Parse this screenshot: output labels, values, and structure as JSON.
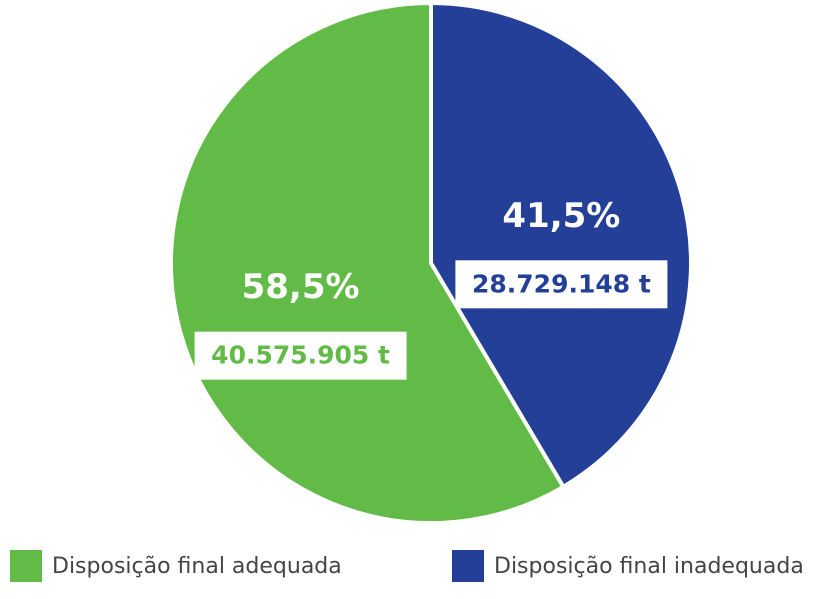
{
  "chart_data": {
    "type": "pie",
    "categories": [
      "Disposição final adequada",
      "Disposição final inadequada"
    ],
    "values": [
      58.5,
      41.5
    ],
    "value_labels": [
      "58,5%",
      "41,5%"
    ],
    "amounts": [
      40575905,
      28729148
    ],
    "amount_labels": [
      "40.575.905 t",
      "28.729.148 t"
    ],
    "colors": [
      "#62bb46",
      "#233f98"
    ],
    "startangle": 90,
    "counterclock": true,
    "legend": "bottom"
  }
}
